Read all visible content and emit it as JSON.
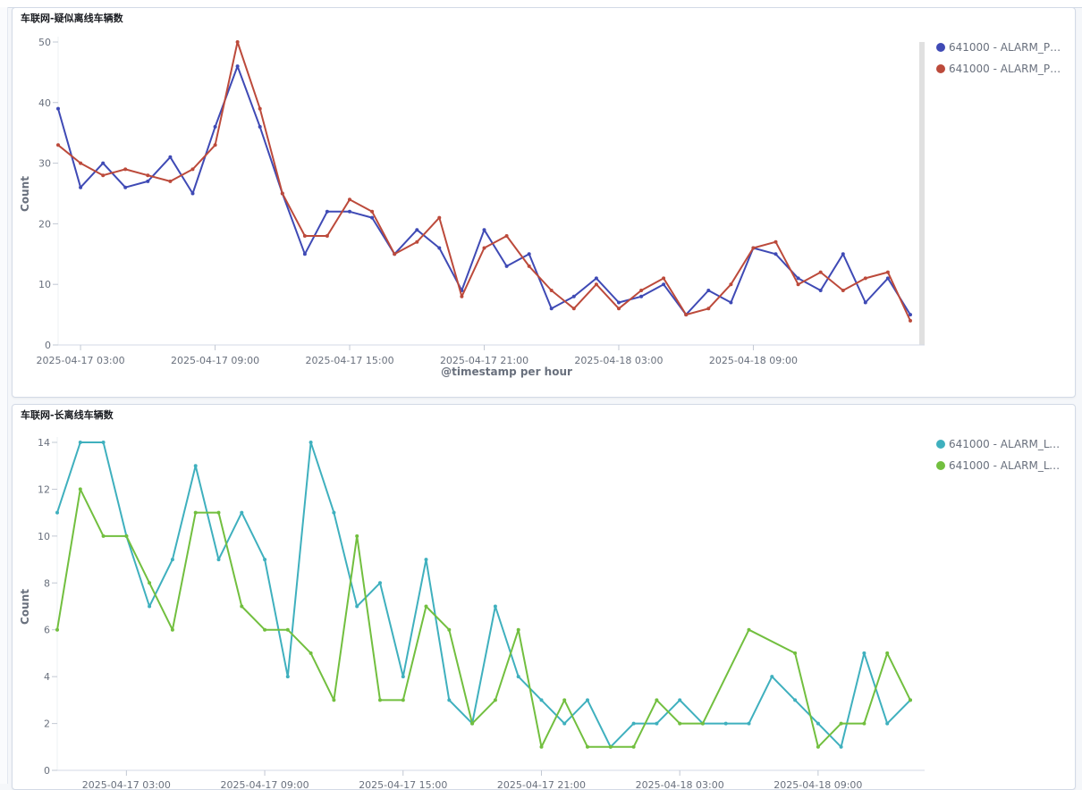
{
  "chart_data": [
    {
      "type": "line",
      "title": "车联网-疑似离线车辆数",
      "xlabel": "@timestamp per hour",
      "ylabel": "Count",
      "ylim": [
        0,
        50
      ],
      "yticks": [
        0,
        10,
        20,
        30,
        40,
        50
      ],
      "xticks": [
        "2025-04-17 03:00",
        "2025-04-17 09:00",
        "2025-04-17 15:00",
        "2025-04-17 21:00",
        "2025-04-18 03:00",
        "2025-04-18 09:00"
      ],
      "x_start": "2025-04-17 02:00",
      "x_step_hours": 1,
      "series": [
        {
          "name": "641000 - ALARM_PO...",
          "color": "#3f4ab5",
          "values": [
            39,
            26,
            30,
            26,
            27,
            31,
            25,
            36,
            46,
            36,
            25,
            15,
            22,
            22,
            21,
            15,
            19,
            16,
            9,
            19,
            13,
            15,
            6,
            8,
            11,
            7,
            8,
            10,
            5,
            9,
            7,
            16,
            15,
            11,
            9,
            15,
            7,
            11,
            5
          ]
        },
        {
          "name": "641000 - ALARM_PO...",
          "color": "#bc4a3b",
          "values": [
            33,
            30,
            28,
            29,
            28,
            27,
            29,
            33,
            50,
            39,
            25,
            18,
            18,
            24,
            22,
            15,
            17,
            21,
            8,
            16,
            18,
            13,
            9,
            6,
            10,
            6,
            9,
            11,
            5,
            6,
            10,
            16,
            17,
            10,
            12,
            9,
            11,
            12,
            4
          ]
        }
      ]
    },
    {
      "type": "line",
      "title": "车联网-长离线车辆数",
      "xlabel": "",
      "ylabel": "Count",
      "ylim": [
        0,
        14
      ],
      "yticks": [
        0,
        2,
        4,
        6,
        8,
        10,
        12,
        14
      ],
      "xticks": [
        "2025-04-17 03:00",
        "2025-04-17 09:00",
        "2025-04-17 15:00",
        "2025-04-17 21:00",
        "2025-04-18 03:00",
        "2025-04-18 09:00"
      ],
      "x_start": "2025-04-17 00:00",
      "x_step_hours": 1,
      "series": [
        {
          "name": "641000 - ALARM_LO...",
          "color": "#3fb0be",
          "values": [
            11,
            14,
            14,
            10,
            7,
            9,
            13,
            9,
            11,
            9,
            4,
            14,
            11,
            7,
            8,
            4,
            9,
            3,
            2,
            7,
            4,
            3,
            2,
            3,
            1,
            2,
            2,
            3,
            2,
            2,
            2,
            4,
            3,
            2,
            1,
            5,
            2,
            3
          ]
        },
        {
          "name": "641000 - ALARM_LO...",
          "color": "#72bf3f",
          "values": [
            6,
            12,
            10,
            10,
            8,
            6,
            11,
            11,
            7,
            6,
            6,
            5,
            3,
            10,
            3,
            3,
            7,
            6,
            2,
            3,
            6,
            1,
            3,
            1,
            1,
            1,
            3,
            2,
            2,
            null,
            6,
            null,
            5,
            1,
            2,
            2,
            5,
            3
          ]
        }
      ]
    }
  ]
}
